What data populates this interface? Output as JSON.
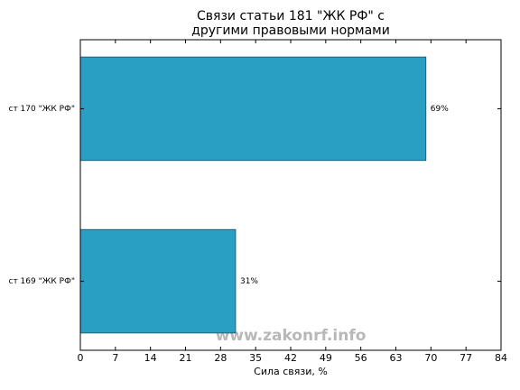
{
  "chart_data": {
    "type": "barh",
    "title": [
      "Связи статьи 181 \"ЖК РФ\" с",
      "другими правовыми нормами"
    ],
    "xlabel": "Сила связи, %",
    "categories": [
      "ст 170 \"ЖК РФ\"",
      "ст 169 \"ЖК РФ\""
    ],
    "values": [
      69,
      31
    ],
    "value_labels": [
      "69%",
      "31%"
    ],
    "color": "#2a9fc4",
    "xlim": [
      0,
      84
    ],
    "xticks": [
      0,
      7,
      14,
      21,
      28,
      35,
      42,
      49,
      56,
      63,
      70,
      77,
      84
    ],
    "watermark": "www.zakonrf.info"
  }
}
